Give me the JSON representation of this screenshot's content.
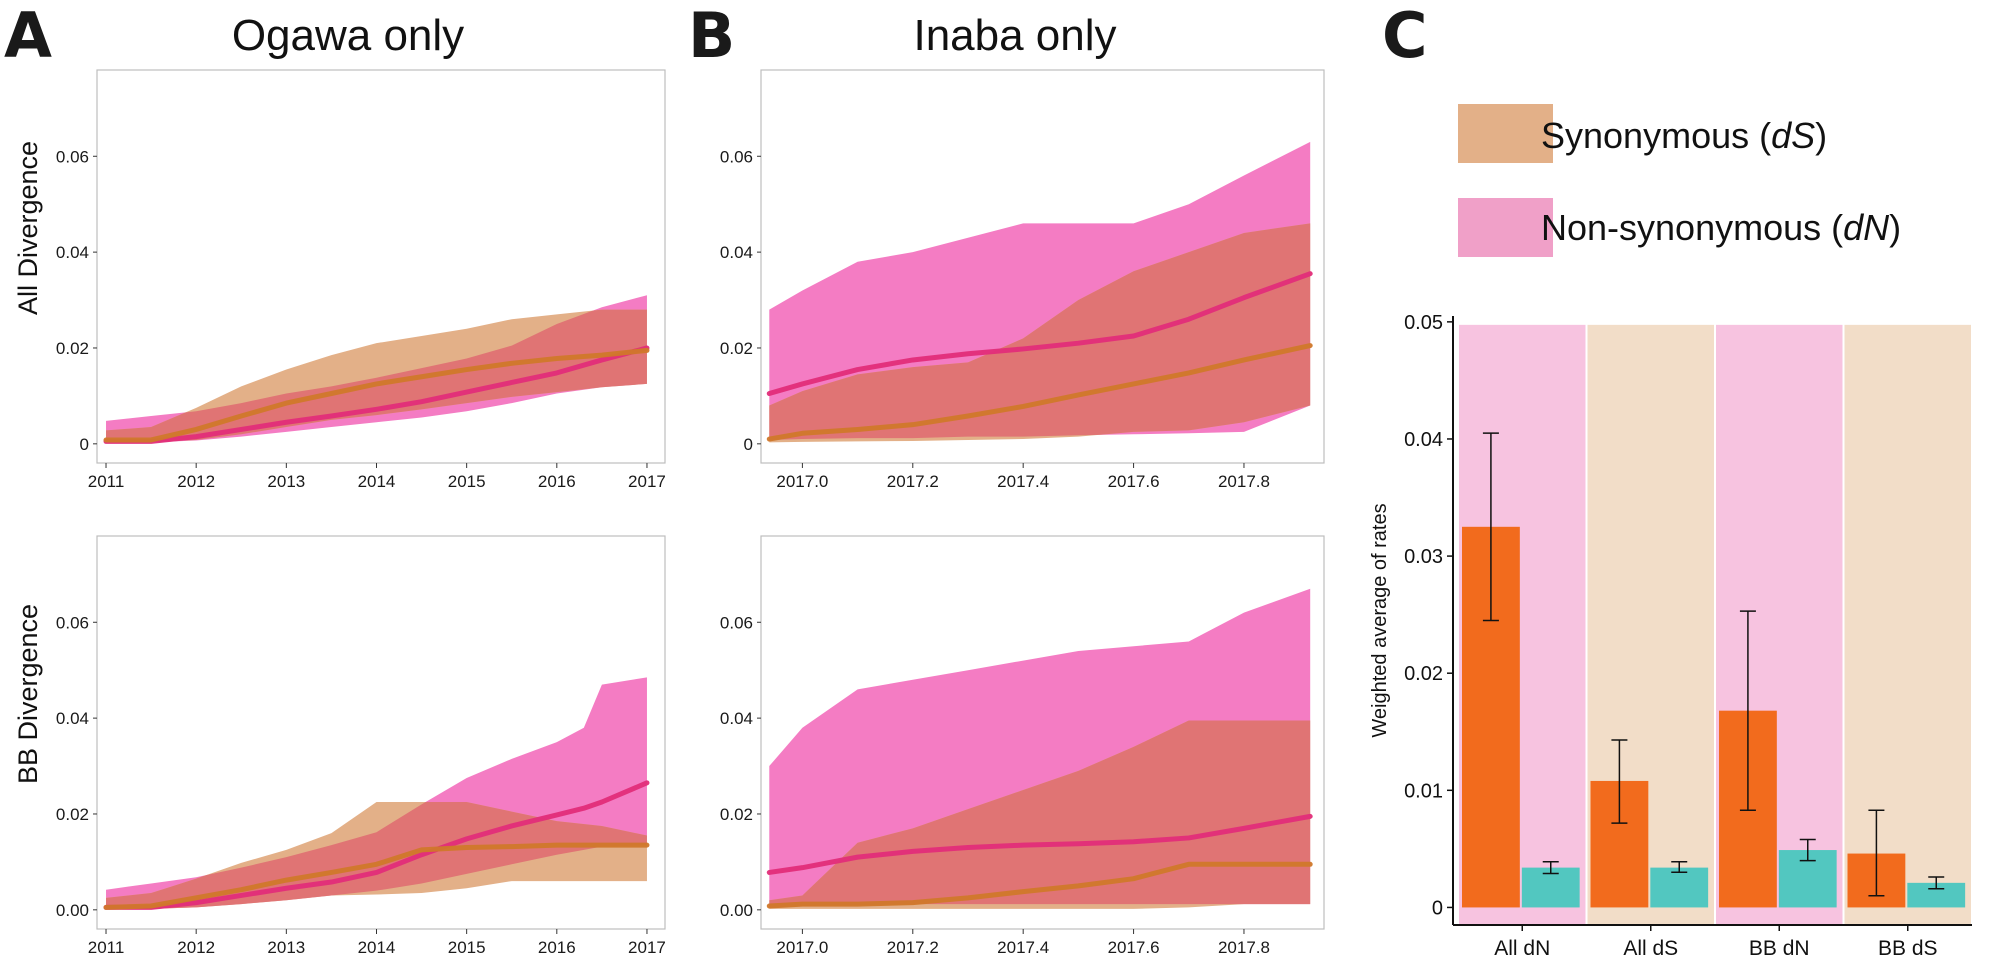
{
  "panels": {
    "a": {
      "letter": "A",
      "title": "Ogawa only"
    },
    "b": {
      "letter": "B",
      "title": "Inaba only"
    },
    "c": {
      "letter": "C"
    }
  },
  "row_labels": {
    "top": "All Divergence",
    "bottom": "BB Divergence"
  },
  "colors": {
    "dS_band": "#e3b088",
    "dN_band": "#f47cc3",
    "overlap": "#e07474",
    "dS_line": "#d0782a",
    "dN_line": "#e22d79",
    "bar_main": "#f26b1d",
    "bar_alt": "#52c7c0",
    "bg_dN": "#f7c3e0",
    "bg_dS": "#f2ddc8"
  },
  "legend": [
    {
      "swatch_color": "#e3b088",
      "label": "Synonymous (dS)"
    },
    {
      "swatch_color": "#f0a0c8",
      "label": "Non-synonymous (dN)"
    }
  ],
  "chart_data": [
    {
      "id": "ogawa_all",
      "type": "area",
      "title": "Ogawa only",
      "ylabel": "All Divergence",
      "xlim": [
        2010.9,
        2017.2
      ],
      "ylim": [
        -0.004,
        0.078
      ],
      "xticks": [
        2011,
        2012,
        2013,
        2014,
        2015,
        2016,
        2017
      ],
      "xtick_labels": [
        "2011",
        "2012",
        "2013",
        "2014",
        "2015",
        "2016",
        "2017"
      ],
      "yticks": [
        0,
        0.02,
        0.04,
        0.06
      ],
      "ytick_labels": [
        "0",
        "0.02",
        "0.04",
        "0.06"
      ],
      "series": [
        {
          "key": "dN",
          "x": [
            2011.0,
            2011.5,
            2012.0,
            2012.5,
            2013.0,
            2013.5,
            2014.0,
            2014.5,
            2015.0,
            2015.5,
            2016.0,
            2016.5,
            2017.0
          ],
          "mean": [
            0.0005,
            0.0005,
            0.0015,
            0.003,
            0.0045,
            0.0058,
            0.0072,
            0.0088,
            0.0108,
            0.0128,
            0.0148,
            0.0175,
            0.02
          ],
          "lower": [
            0.0003,
            0.0003,
            0.0007,
            0.0015,
            0.0025,
            0.0035,
            0.0045,
            0.0055,
            0.0068,
            0.0085,
            0.0105,
            0.0118,
            0.0125
          ],
          "upper": [
            0.0048,
            0.0058,
            0.0068,
            0.0085,
            0.0105,
            0.012,
            0.0138,
            0.0158,
            0.0178,
            0.0205,
            0.025,
            0.0285,
            0.031
          ]
        },
        {
          "key": "dS",
          "x": [
            2011.0,
            2011.5,
            2012.0,
            2012.5,
            2013.0,
            2013.5,
            2014.0,
            2014.5,
            2015.0,
            2015.5,
            2016.0,
            2016.5,
            2017.0
          ],
          "mean": [
            0.0008,
            0.0008,
            0.003,
            0.0058,
            0.0085,
            0.0105,
            0.0125,
            0.014,
            0.0155,
            0.0168,
            0.0178,
            0.0185,
            0.0195
          ],
          "lower": [
            0.0004,
            0.0004,
            0.0008,
            0.002,
            0.0035,
            0.005,
            0.006,
            0.0072,
            0.0085,
            0.0098,
            0.0108,
            0.0118,
            0.0125
          ],
          "upper": [
            0.0028,
            0.0035,
            0.0075,
            0.012,
            0.0155,
            0.0185,
            0.021,
            0.0225,
            0.024,
            0.026,
            0.027,
            0.028,
            0.028
          ]
        }
      ]
    },
    {
      "id": "inaba_all",
      "type": "area",
      "title": "Inaba only",
      "ylabel": "All Divergence",
      "xlim": [
        2016.925,
        2017.945
      ],
      "ylim": [
        -0.004,
        0.078
      ],
      "xticks": [
        2017.0,
        2017.2,
        2017.4,
        2017.6,
        2017.8
      ],
      "xtick_labels": [
        "2017.0",
        "2017.2",
        "2017.4",
        "2017.6",
        "2017.8"
      ],
      "yticks": [
        0,
        0.02,
        0.04,
        0.06
      ],
      "ytick_labels": [
        "0",
        "0.02",
        "0.04",
        "0.06"
      ],
      "series": [
        {
          "key": "dN",
          "x": [
            2016.94,
            2017.0,
            2017.1,
            2017.2,
            2017.3,
            2017.4,
            2017.5,
            2017.6,
            2017.7,
            2017.8,
            2017.92
          ],
          "mean": [
            0.0105,
            0.0125,
            0.0155,
            0.0175,
            0.0188,
            0.0198,
            0.021,
            0.0225,
            0.026,
            0.0305,
            0.0355
          ],
          "lower": [
            0.0008,
            0.001,
            0.0012,
            0.0012,
            0.0015,
            0.0015,
            0.0018,
            0.002,
            0.0022,
            0.0025,
            0.008
          ],
          "upper": [
            0.028,
            0.032,
            0.038,
            0.04,
            0.043,
            0.046,
            0.046,
            0.046,
            0.05,
            0.056,
            0.063
          ]
        },
        {
          "key": "dS",
          "x": [
            2016.94,
            2017.0,
            2017.1,
            2017.2,
            2017.3,
            2017.4,
            2017.5,
            2017.6,
            2017.7,
            2017.8,
            2017.92
          ],
          "mean": [
            0.001,
            0.0022,
            0.003,
            0.004,
            0.0058,
            0.0078,
            0.0102,
            0.0125,
            0.0148,
            0.0175,
            0.0205
          ],
          "lower": [
            0.0003,
            0.0004,
            0.0005,
            0.0006,
            0.0008,
            0.001,
            0.0015,
            0.0025,
            0.0028,
            0.0045,
            0.008
          ],
          "upper": [
            0.008,
            0.011,
            0.0145,
            0.016,
            0.017,
            0.022,
            0.03,
            0.036,
            0.04,
            0.044,
            0.046
          ]
        }
      ]
    },
    {
      "id": "ogawa_bb",
      "type": "area",
      "title": "Ogawa only",
      "ylabel": "BB Divergence",
      "xlim": [
        2010.9,
        2017.2
      ],
      "ylim": [
        -0.004,
        0.078
      ],
      "xticks": [
        2011,
        2012,
        2013,
        2014,
        2015,
        2016,
        2017
      ],
      "xtick_labels": [
        "2011",
        "2012",
        "2013",
        "2014",
        "2015",
        "2016",
        "2017"
      ],
      "yticks": [
        0,
        0.02,
        0.04,
        0.06
      ],
      "ytick_labels": [
        "0.00",
        "0.02",
        "0.04",
        "0.06"
      ],
      "series": [
        {
          "key": "dN",
          "x": [
            2011.0,
            2011.5,
            2012.0,
            2012.5,
            2013.0,
            2013.5,
            2014.0,
            2014.5,
            2015.0,
            2015.5,
            2016.0,
            2016.3,
            2016.5,
            2017.0
          ],
          "mean": [
            0.0005,
            0.0005,
            0.0015,
            0.003,
            0.0045,
            0.0058,
            0.0078,
            0.0115,
            0.0148,
            0.0175,
            0.0198,
            0.0212,
            0.0225,
            0.0265
          ],
          "lower": [
            0.0002,
            0.0002,
            0.0005,
            0.0012,
            0.002,
            0.003,
            0.004,
            0.0055,
            0.0075,
            0.0095,
            0.0115,
            0.0125,
            0.0132,
            0.0135
          ],
          "upper": [
            0.0042,
            0.0055,
            0.0068,
            0.0088,
            0.011,
            0.0135,
            0.0162,
            0.022,
            0.0275,
            0.0315,
            0.035,
            0.038,
            0.047,
            0.0485
          ]
        },
        {
          "key": "dS",
          "x": [
            2011.0,
            2011.5,
            2012.0,
            2012.5,
            2013.0,
            2013.5,
            2014.0,
            2014.5,
            2015.0,
            2015.5,
            2016.0,
            2016.5,
            2017.0
          ],
          "mean": [
            0.0005,
            0.0008,
            0.0025,
            0.0042,
            0.0062,
            0.0078,
            0.0095,
            0.0125,
            0.013,
            0.0132,
            0.0135,
            0.0135,
            0.0135
          ],
          "lower": [
            0.0002,
            0.0002,
            0.0005,
            0.0012,
            0.002,
            0.003,
            0.0032,
            0.0035,
            0.0045,
            0.006,
            0.006,
            0.006,
            0.006
          ],
          "upper": [
            0.0025,
            0.0035,
            0.0065,
            0.0098,
            0.0125,
            0.016,
            0.0225,
            0.0225,
            0.0225,
            0.0205,
            0.0185,
            0.0175,
            0.0155
          ]
        }
      ]
    },
    {
      "id": "inaba_bb",
      "type": "area",
      "title": "Inaba only",
      "ylabel": "BB Divergence",
      "xlim": [
        2016.925,
        2017.945
      ],
      "ylim": [
        -0.004,
        0.078
      ],
      "xticks": [
        2017.0,
        2017.2,
        2017.4,
        2017.6,
        2017.8
      ],
      "xtick_labels": [
        "2017.0",
        "2017.2",
        "2017.4",
        "2017.6",
        "2017.8"
      ],
      "yticks": [
        0,
        0.02,
        0.04,
        0.06
      ],
      "ytick_labels": [
        "0.00",
        "0.02",
        "0.04",
        "0.06"
      ],
      "series": [
        {
          "key": "dN",
          "x": [
            2016.94,
            2017.0,
            2017.1,
            2017.2,
            2017.3,
            2017.4,
            2017.5,
            2017.6,
            2017.7,
            2017.8,
            2017.92
          ],
          "mean": [
            0.0078,
            0.0088,
            0.011,
            0.0122,
            0.013,
            0.0135,
            0.0138,
            0.0142,
            0.015,
            0.017,
            0.0195
          ],
          "lower": [
            0.0005,
            0.0008,
            0.001,
            0.0012,
            0.0012,
            0.0012,
            0.0012,
            0.0012,
            0.0012,
            0.0012,
            0.0012
          ],
          "upper": [
            0.03,
            0.038,
            0.046,
            0.048,
            0.05,
            0.052,
            0.054,
            0.055,
            0.056,
            0.062,
            0.067
          ]
        },
        {
          "key": "dS",
          "x": [
            2016.94,
            2017.0,
            2017.1,
            2017.2,
            2017.3,
            2017.4,
            2017.5,
            2017.6,
            2017.7,
            2017.8,
            2017.92
          ],
          "mean": [
            0.0008,
            0.0012,
            0.0012,
            0.0015,
            0.0025,
            0.0038,
            0.005,
            0.0065,
            0.0095,
            0.0095,
            0.0095
          ],
          "lower": [
            0.0002,
            0.0002,
            0.0002,
            0.0002,
            0.0002,
            0.0002,
            0.0002,
            0.0002,
            0.0005,
            0.0012,
            0.0012
          ],
          "upper": [
            0.002,
            0.003,
            0.014,
            0.017,
            0.021,
            0.025,
            0.029,
            0.034,
            0.0395,
            0.0395,
            0.0395
          ]
        }
      ]
    },
    {
      "id": "rates",
      "type": "bar",
      "ylabel": "Weighted average of rates",
      "ylim": [
        -0.0015,
        0.0505
      ],
      "yticks": [
        0,
        0.01,
        0.02,
        0.03,
        0.04,
        0.05
      ],
      "ytick_labels": [
        "0",
        "0.01",
        "0.02",
        "0.03",
        "0.04",
        "0.05"
      ],
      "categories": [
        "All dN",
        "All dS",
        "BB dN",
        "BB dS"
      ],
      "category_bg": [
        "dN",
        "dS",
        "dN",
        "dS"
      ],
      "series": [
        {
          "values": [
            0.0325,
            0.0108,
            0.0168,
            0.0046
          ],
          "err_low": [
            0.0245,
            0.0072,
            0.0083,
            0.001
          ],
          "err_high": [
            0.0405,
            0.0143,
            0.0253,
            0.0083
          ]
        },
        {
          "values": [
            0.0034,
            0.0034,
            0.0049,
            0.0021
          ],
          "err_low": [
            0.0029,
            0.003,
            0.004,
            0.0016
          ],
          "err_high": [
            0.0039,
            0.0039,
            0.0058,
            0.0026
          ]
        }
      ]
    }
  ]
}
